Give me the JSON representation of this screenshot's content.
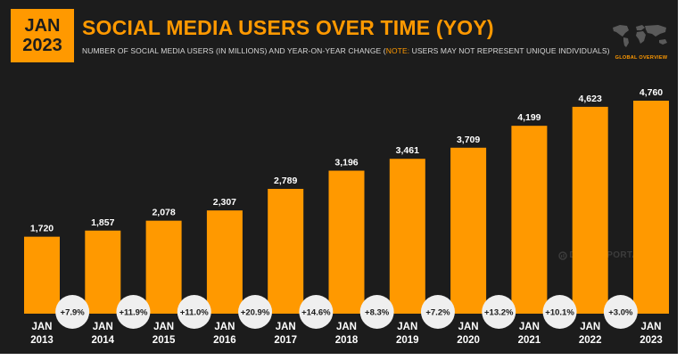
{
  "header": {
    "badge_line1": "JAN",
    "badge_line2": "2023",
    "title": "SOCIAL MEDIA USERS OVER TIME (YOY)",
    "subtitle_main": "NUMBER OF SOCIAL MEDIA USERS (IN MILLIONS) AND YEAR-ON-YEAR CHANGE (",
    "subtitle_note_label": "NOTE:",
    "subtitle_note_text": " USERS MAY NOT REPRESENT UNIQUE INDIVIDUALS)",
    "overview_label": "GLOBAL OVERVIEW",
    "map_icon": "world-map-icon"
  },
  "watermark": "DATAREPORTAL",
  "colors": {
    "background": "#1c1c1c",
    "accent": "#ff9900",
    "bubble": "#efefef",
    "bubble_text": "#1c1c1c",
    "label_text": "#ffffff"
  },
  "chart_data": {
    "type": "bar",
    "title": "SOCIAL MEDIA USERS OVER TIME (YOY)",
    "categories": [
      "JAN 2013",
      "JAN 2014",
      "JAN 2015",
      "JAN 2016",
      "JAN 2017",
      "JAN 2018",
      "JAN 2019",
      "JAN 2020",
      "JAN 2021",
      "JAN 2022",
      "JAN 2023"
    ],
    "category_lines": [
      [
        "JAN",
        "2013"
      ],
      [
        "JAN",
        "2014"
      ],
      [
        "JAN",
        "2015"
      ],
      [
        "JAN",
        "2016"
      ],
      [
        "JAN",
        "2017"
      ],
      [
        "JAN",
        "2018"
      ],
      [
        "JAN",
        "2019"
      ],
      [
        "JAN",
        "2020"
      ],
      [
        "JAN",
        "2021"
      ],
      [
        "JAN",
        "2022"
      ],
      [
        "JAN",
        "2023"
      ]
    ],
    "values": [
      1720,
      1857,
      2078,
      2307,
      2789,
      3196,
      3461,
      3709,
      4199,
      4623,
      4760
    ],
    "value_labels": [
      "1,720",
      "1,857",
      "2,078",
      "2,307",
      "2,789",
      "3,196",
      "3,461",
      "3,709",
      "4,199",
      "4,623",
      "4,760"
    ],
    "yoy_change": [
      "+7.9%",
      "+11.9%",
      "+11.0%",
      "+20.9%",
      "+14.6%",
      "+8.3%",
      "+7.2%",
      "+13.2%",
      "+10.1%",
      "+3.0%"
    ],
    "ylim": [
      0,
      5000
    ],
    "grid": false,
    "legend": "none"
  }
}
